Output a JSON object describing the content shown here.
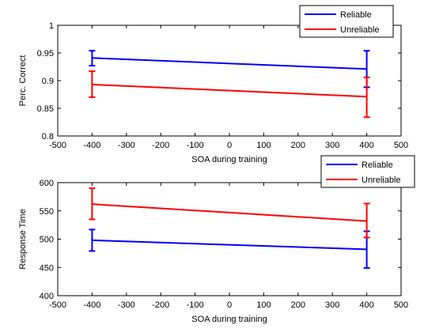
{
  "chart_data": [
    {
      "type": "line",
      "xlabel": "SOA during training",
      "ylabel": "Perc. Correct",
      "xlim": [
        -500,
        500
      ],
      "ylim": [
        0.8,
        1
      ],
      "xticks": [
        "-500",
        "-400",
        "-300",
        "-200",
        "-100",
        "0",
        "100",
        "200",
        "300",
        "400",
        "500"
      ],
      "yticks": [
        "0.8",
        "0.85",
        "0.9",
        "0.95",
        "1"
      ],
      "legend_position": "top-right",
      "series": [
        {
          "name": "Reliable",
          "color": "#0000ff",
          "x": [
            -400,
            400
          ],
          "y": [
            0.941,
            0.921
          ],
          "err_low": [
            0.927,
            0.888
          ],
          "err_high": [
            0.954,
            0.954
          ]
        },
        {
          "name": "Unreliable",
          "color": "#ff0000",
          "x": [
            -400,
            400
          ],
          "y": [
            0.893,
            0.871
          ],
          "err_low": [
            0.87,
            0.834
          ],
          "err_high": [
            0.917,
            0.906
          ]
        }
      ]
    },
    {
      "type": "line",
      "xlabel": "SOA during training",
      "ylabel": "Response Time",
      "xlim": [
        -500,
        500
      ],
      "ylim": [
        400,
        600
      ],
      "xticks": [
        "-500",
        "-400",
        "-300",
        "-200",
        "-100",
        "0",
        "100",
        "200",
        "300",
        "400",
        "500"
      ],
      "yticks": [
        "400",
        "450",
        "500",
        "550",
        "600"
      ],
      "legend_position": "top-right",
      "series": [
        {
          "name": "Reliable",
          "color": "#0000ff",
          "x": [
            -400,
            400
          ],
          "y": [
            498,
            482
          ],
          "err_low": [
            479,
            449
          ],
          "err_high": [
            517,
            514
          ]
        },
        {
          "name": "Unreliable",
          "color": "#ff0000",
          "x": [
            -400,
            400
          ],
          "y": [
            562,
            532
          ],
          "err_low": [
            535,
            503
          ],
          "err_high": [
            590,
            563
          ]
        }
      ]
    }
  ]
}
